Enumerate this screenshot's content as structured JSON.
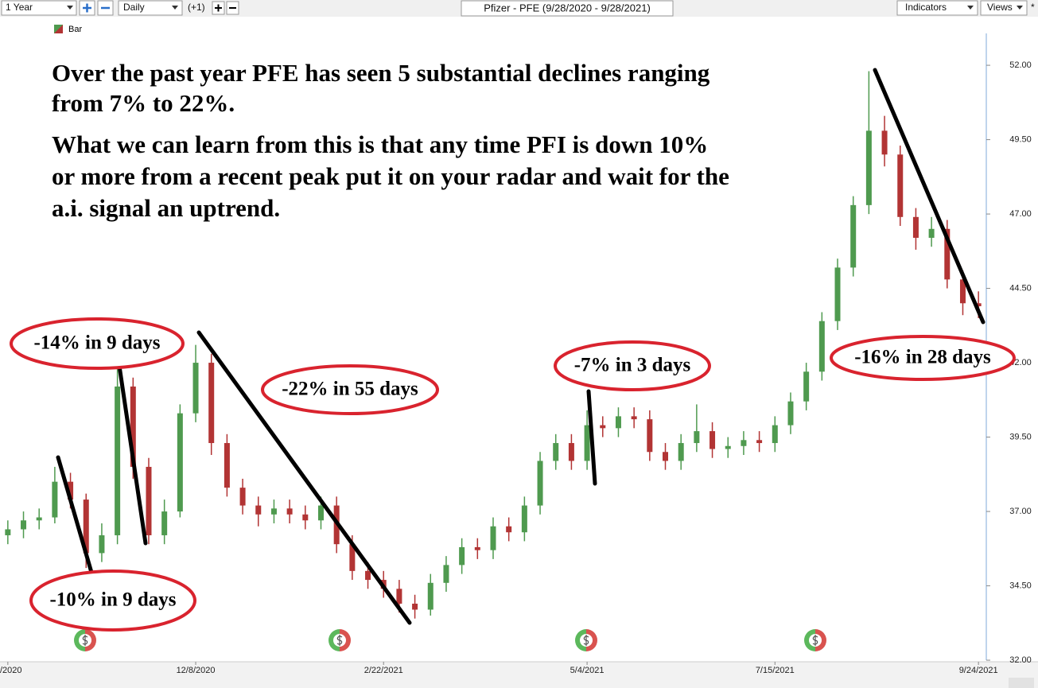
{
  "toolbar": {
    "period": "1 Year",
    "interval": "Daily",
    "offset": "(+1)",
    "indicators": "Indicators",
    "views": "Views",
    "views_marker": "*"
  },
  "chart_data": {
    "type": "candlestick",
    "title": "Pfizer - PFE (9/28/2020 - 9/28/2021)",
    "legend_label": "Bar",
    "up_color": "#4f9a4f",
    "down_color": "#b23434",
    "categories": [
      "/2020",
      null,
      null,
      null,
      null,
      null,
      null,
      null,
      null,
      null,
      null,
      null,
      "12/8/2020",
      null,
      null,
      null,
      null,
      null,
      null,
      null,
      null,
      null,
      null,
      null,
      "2/22/2021",
      null,
      null,
      null,
      null,
      null,
      null,
      null,
      null,
      null,
      null,
      null,
      null,
      "5/4/2021",
      null,
      null,
      null,
      null,
      null,
      null,
      null,
      null,
      null,
      null,
      null,
      "7/15/2021",
      null,
      null,
      null,
      null,
      null,
      null,
      null,
      null,
      null,
      null,
      null,
      null,
      "9/24/2021"
    ],
    "open": [
      36.2,
      36.4,
      36.7,
      36.8,
      38.0,
      37.4,
      35.6,
      36.2,
      41.2,
      38.5,
      36.2,
      37.0,
      40.3,
      42.0,
      39.3,
      37.8,
      37.2,
      36.9,
      37.1,
      36.9,
      36.7,
      37.2,
      35.9,
      35.0,
      34.7,
      34.4,
      33.9,
      33.7,
      34.6,
      35.2,
      35.8,
      35.7,
      36.5,
      36.3,
      37.2,
      38.7,
      39.3,
      38.7,
      39.9,
      39.8,
      40.2,
      40.1,
      39.0,
      38.7,
      39.3,
      39.7,
      39.1,
      39.2,
      39.4,
      39.3,
      39.9,
      40.7,
      41.7,
      43.4,
      45.2,
      47.3,
      49.8,
      49.0,
      46.9,
      46.2,
      46.5,
      44.8,
      44.0
    ],
    "high": [
      36.7,
      37.0,
      37.1,
      38.5,
      38.3,
      37.6,
      36.6,
      41.8,
      41.5,
      38.8,
      37.4,
      40.6,
      42.6,
      42.3,
      39.6,
      38.1,
      37.5,
      37.4,
      37.4,
      37.2,
      37.5,
      37.5,
      36.2,
      35.3,
      35.0,
      34.7,
      34.2,
      34.9,
      35.5,
      36.1,
      36.1,
      36.8,
      36.8,
      37.5,
      39.0,
      39.6,
      39.6,
      40.4,
      40.2,
      40.5,
      40.5,
      40.4,
      39.3,
      39.6,
      40.6,
      40.0,
      39.5,
      39.7,
      39.7,
      40.2,
      41.0,
      42.0,
      43.7,
      45.5,
      47.6,
      51.8,
      50.3,
      49.3,
      47.2,
      46.9,
      46.8,
      45.1,
      44.4
    ],
    "low": [
      35.9,
      36.1,
      36.4,
      36.6,
      37.1,
      35.1,
      35.3,
      35.9,
      38.1,
      35.9,
      35.9,
      36.8,
      40.0,
      38.9,
      37.5,
      36.9,
      36.5,
      36.6,
      36.6,
      36.4,
      36.4,
      35.6,
      34.7,
      34.4,
      34.1,
      33.6,
      33.4,
      33.5,
      34.3,
      34.9,
      35.4,
      35.4,
      36.0,
      36.0,
      36.9,
      38.4,
      38.4,
      38.4,
      39.5,
      39.5,
      39.8,
      38.7,
      38.4,
      38.4,
      39.0,
      38.8,
      38.8,
      38.9,
      39.0,
      39.0,
      39.6,
      40.4,
      41.4,
      43.1,
      44.9,
      47.0,
      48.6,
      46.6,
      45.8,
      45.9,
      44.5,
      43.6,
      43.5
    ],
    "close": [
      36.4,
      36.7,
      36.8,
      38.0,
      37.4,
      35.6,
      36.2,
      41.2,
      38.5,
      36.2,
      37.0,
      40.3,
      42.0,
      39.3,
      37.8,
      37.2,
      36.9,
      37.1,
      36.9,
      36.7,
      37.2,
      35.9,
      35.0,
      34.7,
      34.4,
      33.9,
      33.7,
      34.6,
      35.2,
      35.8,
      35.7,
      36.5,
      36.3,
      37.2,
      38.7,
      39.3,
      38.7,
      39.9,
      39.8,
      40.2,
      40.1,
      39.0,
      38.7,
      39.3,
      39.7,
      39.1,
      39.2,
      39.4,
      39.3,
      39.9,
      40.7,
      41.7,
      43.4,
      45.2,
      47.3,
      49.8,
      49.0,
      46.9,
      46.2,
      46.5,
      44.8,
      44.0,
      43.9
    ],
    "ylim": [
      31.6,
      53.66
    ],
    "yticks": [
      {
        "value": 32,
        "label": "32.00"
      },
      {
        "value": 34.5,
        "label": "34.50"
      },
      {
        "value": 37,
        "label": "37.00"
      },
      {
        "value": 39.5,
        "label": "39.50"
      },
      {
        "value": 42,
        "label": "42.00"
      },
      {
        "value": 44.5,
        "label": "44.50"
      },
      {
        "value": 47,
        "label": "47.00"
      },
      {
        "value": 49.5,
        "label": "49.50"
      },
      {
        "value": 52,
        "label": "52.00"
      }
    ],
    "grid": false,
    "annotations": {
      "headline": [
        "Over the past year PFE has seen 5 substantial declines ranging",
        "from 7% to 22%."
      ],
      "note": [
        "What we can learn from this is that any time PFI is down 10%",
        "or more from a recent peak put it on your radar and wait for the",
        "a.i. signal an uptrend."
      ],
      "callouts": [
        "-14% in 9 days",
        "-22% in 55 days",
        "-7% in 3 days",
        "-16% in 28 days",
        "-10% in 9 days"
      ]
    }
  }
}
